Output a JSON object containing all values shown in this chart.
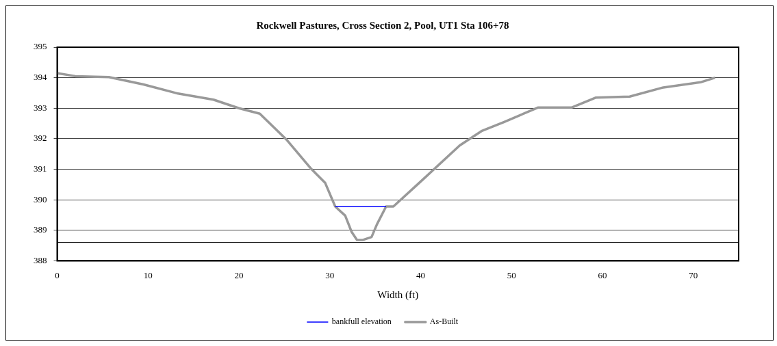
{
  "chart_data": {
    "type": "line",
    "title": "Rockwell Pastures, Cross Section 2, Pool, UT1 Sta 106+78",
    "xlabel": "Width (ft)",
    "xlim": [
      0,
      75
    ],
    "xticks": [
      0,
      10,
      20,
      30,
      40,
      50,
      60,
      70
    ],
    "ylim": [
      388,
      395
    ],
    "yticks": [
      388,
      389,
      390,
      391,
      392,
      393,
      394,
      395
    ],
    "grid": "y",
    "legend": "bottom",
    "marker": "none",
    "series": [
      {
        "name": "bankfull elevation",
        "color": "#0000ff",
        "x": [
          30.6,
          36.2
        ],
        "values": [
          389.78,
          389.78
        ]
      },
      {
        "name": "As-Built",
        "color": "#999999",
        "x": [
          0,
          2,
          5.7,
          9.5,
          13.3,
          17.2,
          20,
          22.3,
          25.3,
          28,
          29.5,
          30.6,
          31.7,
          32.4,
          33,
          33.6,
          34.6,
          35.2,
          36.2,
          37,
          40.2,
          44.3,
          46.7,
          49.2,
          52.9,
          56.6,
          59.3,
          63,
          66.7,
          70.8,
          72.4
        ],
        "values": [
          394.15,
          394.05,
          394.02,
          393.78,
          393.48,
          393.28,
          393,
          392.82,
          391.95,
          391,
          390.55,
          389.78,
          389.48,
          388.95,
          388.68,
          388.68,
          388.78,
          389.2,
          389.78,
          389.78,
          390.65,
          391.78,
          392.25,
          392.55,
          393.02,
          393.02,
          393.35,
          393.38,
          393.68,
          393.85,
          394
        ]
      }
    ],
    "ref_lines": [
      {
        "axis": "y",
        "value": 388.6,
        "color": "#000000"
      }
    ]
  }
}
